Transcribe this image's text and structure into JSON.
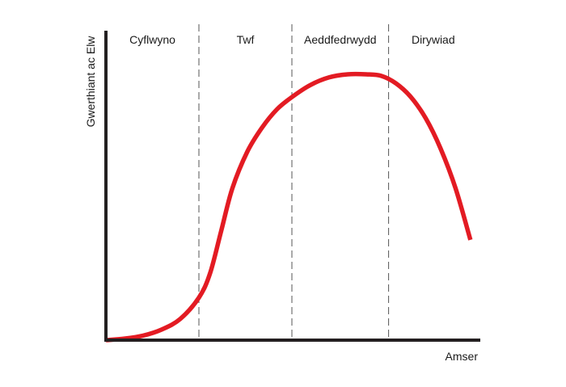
{
  "chart_data": {
    "type": "line",
    "title": "",
    "xlabel": "Amser",
    "ylabel": "Gwerthiant ac Elw",
    "xlim": [
      0,
      100
    ],
    "ylim": [
      0,
      100
    ],
    "grid": false,
    "stages": [
      {
        "label": "Cyflwyno",
        "start": 0,
        "end": 25
      },
      {
        "label": "Twf",
        "start": 25,
        "end": 50
      },
      {
        "label": "Aeddfedrwydd",
        "start": 50,
        "end": 76
      },
      {
        "label": "Dirywiad",
        "start": 76,
        "end": 100
      }
    ],
    "series": [
      {
        "name": "Gwerthiant",
        "color": "#e31b23",
        "x": [
          0,
          5,
          10,
          15,
          20,
          25,
          28,
          31,
          34,
          38,
          42,
          46,
          50,
          55,
          60,
          65,
          70,
          74,
          78,
          82,
          86,
          90,
          94,
          98
        ],
        "y": [
          0,
          0.5,
          1.5,
          3.5,
          7,
          14,
          22,
          36,
          50,
          62,
          70,
          76,
          80,
          84,
          86.5,
          87.5,
          87.5,
          87,
          84.5,
          80,
          73,
          63,
          50,
          33
        ]
      }
    ],
    "colors": {
      "axis": "#231f20",
      "divider": "#555555",
      "curve": "#e31b23"
    }
  }
}
